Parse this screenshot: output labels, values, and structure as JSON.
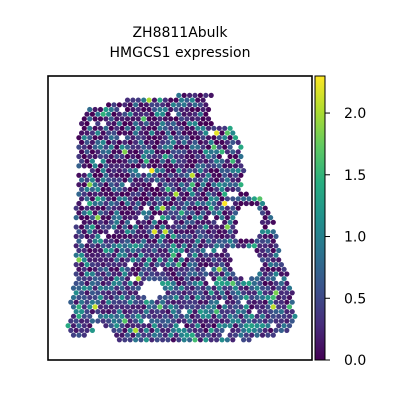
{
  "chart_data": {
    "type": "heatmap",
    "title_lines": [
      "ZH8811Abulk",
      "HMGCS1 expression"
    ],
    "xlabel": "",
    "ylabel": "",
    "colorbar": {
      "label": "",
      "range": [
        0.0,
        2.3
      ],
      "ticks": [
        0.0,
        0.5,
        1.0,
        1.5,
        2.0
      ],
      "tick_labels": [
        "0.0",
        "0.5",
        "1.0",
        "1.5",
        "2.0"
      ],
      "colormap": "viridis"
    },
    "axes_visible": false,
    "grid": false
  }
}
